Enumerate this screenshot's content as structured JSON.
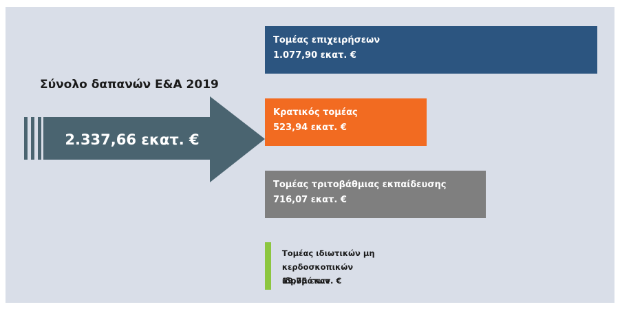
{
  "chart_data": {
    "type": "bar",
    "title": "Σύνολο δαπανών Ε&Α 2019",
    "total_label": "2.337,66 εκατ. €",
    "categories": [
      "Τομέας επιχειρήσεων",
      "Κρατικός τομέας",
      "Τομέας τριτοβάθμιας εκπαίδευσης",
      "Τομέας ιδιωτικών μη κερδοσκοπικών ιδρυμάτων"
    ],
    "values": [
      1077.9,
      523.94,
      716.07,
      19.75
    ],
    "value_labels": [
      "1.077,90 εκατ. €",
      "523,94 εκατ. €",
      "716,07 εκατ. €",
      "19,75 εκατ. €"
    ],
    "colors": [
      "#2c5580",
      "#f26b21",
      "#7f7f7f",
      "#8cc63f"
    ]
  }
}
